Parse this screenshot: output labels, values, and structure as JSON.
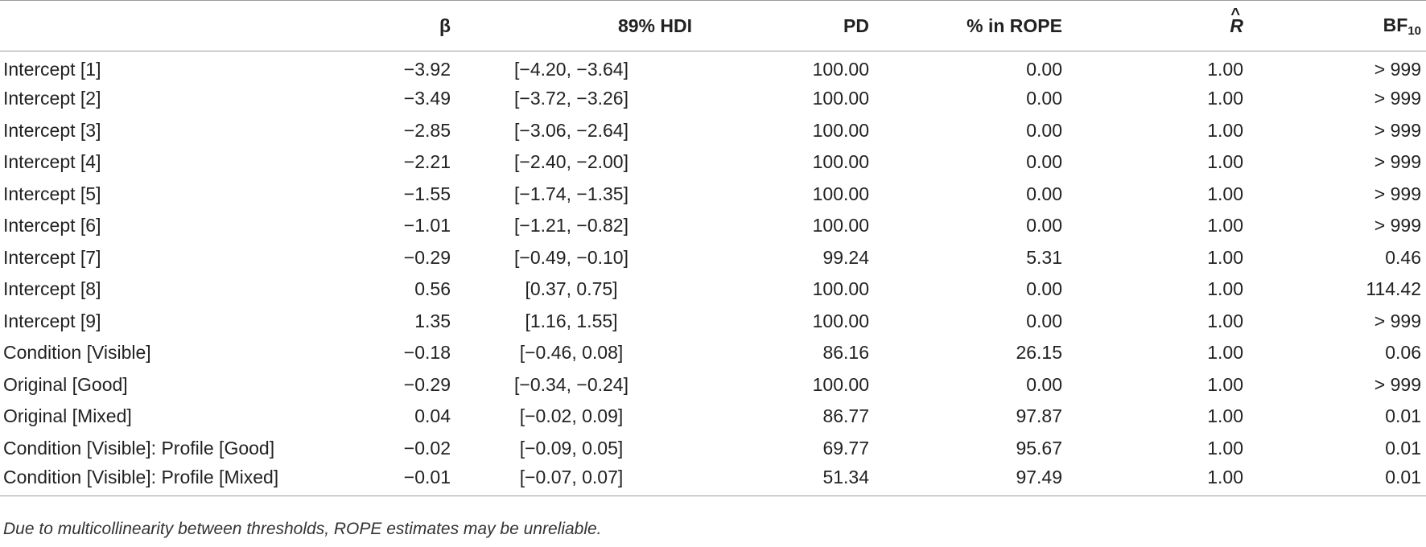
{
  "table": {
    "headers": {
      "term": "",
      "beta": "β",
      "hdi": "89% HDI",
      "pd": "PD",
      "rope": "% in ROPE",
      "rhat": "R",
      "bf_main": "BF",
      "bf_sub": "10"
    },
    "rows": [
      {
        "term": "Intercept [1]",
        "beta": "−3.92",
        "hdi": "[−4.20, −3.64]",
        "pd": "100.00",
        "rope": "0.00",
        "rhat": "1.00",
        "bf": "> 999"
      },
      {
        "term": "Intercept [2]",
        "beta": "−3.49",
        "hdi": "[−3.72, −3.26]",
        "pd": "100.00",
        "rope": "0.00",
        "rhat": "1.00",
        "bf": "> 999"
      },
      {
        "term": "Intercept [3]",
        "beta": "−2.85",
        "hdi": "[−3.06, −2.64]",
        "pd": "100.00",
        "rope": "0.00",
        "rhat": "1.00",
        "bf": "> 999"
      },
      {
        "term": "Intercept [4]",
        "beta": "−2.21",
        "hdi": "[−2.40, −2.00]",
        "pd": "100.00",
        "rope": "0.00",
        "rhat": "1.00",
        "bf": "> 999"
      },
      {
        "term": "Intercept [5]",
        "beta": "−1.55",
        "hdi": "[−1.74, −1.35]",
        "pd": "100.00",
        "rope": "0.00",
        "rhat": "1.00",
        "bf": "> 999"
      },
      {
        "term": "Intercept [6]",
        "beta": "−1.01",
        "hdi": "[−1.21, −0.82]",
        "pd": "100.00",
        "rope": "0.00",
        "rhat": "1.00",
        "bf": "> 999"
      },
      {
        "term": "Intercept [7]",
        "beta": "−0.29",
        "hdi": "[−0.49, −0.10]",
        "pd": "99.24",
        "rope": "5.31",
        "rhat": "1.00",
        "bf": "0.46"
      },
      {
        "term": "Intercept [8]",
        "beta": "0.56",
        "hdi": "[0.37, 0.75]",
        "pd": "100.00",
        "rope": "0.00",
        "rhat": "1.00",
        "bf": "114.42"
      },
      {
        "term": "Intercept [9]",
        "beta": "1.35",
        "hdi": "[1.16, 1.55]",
        "pd": "100.00",
        "rope": "0.00",
        "rhat": "1.00",
        "bf": "> 999"
      },
      {
        "term": "Condition [Visible]",
        "beta": "−0.18",
        "hdi": "[−0.46, 0.08]",
        "pd": "86.16",
        "rope": "26.15",
        "rhat": "1.00",
        "bf": "0.06"
      },
      {
        "term": "Original [Good]",
        "beta": "−0.29",
        "hdi": "[−0.34, −0.24]",
        "pd": "100.00",
        "rope": "0.00",
        "rhat": "1.00",
        "bf": "> 999"
      },
      {
        "term": "Original [Mixed]",
        "beta": "0.04",
        "hdi": "[−0.02, 0.09]",
        "pd": "86.77",
        "rope": "97.87",
        "rhat": "1.00",
        "bf": "0.01"
      },
      {
        "term": "Condition [Visible]: Profile [Good]",
        "beta": "−0.02",
        "hdi": "[−0.09, 0.05]",
        "pd": "69.77",
        "rope": "95.67",
        "rhat": "1.00",
        "bf": "0.01"
      },
      {
        "term": "Condition [Visible]: Profile [Mixed]",
        "beta": "−0.01",
        "hdi": "[−0.07, 0.07]",
        "pd": "51.34",
        "rope": "97.49",
        "rhat": "1.00",
        "bf": "0.01"
      }
    ]
  },
  "footnote": "Due to multicollinearity between thresholds, ROPE estimates may be unreliable."
}
